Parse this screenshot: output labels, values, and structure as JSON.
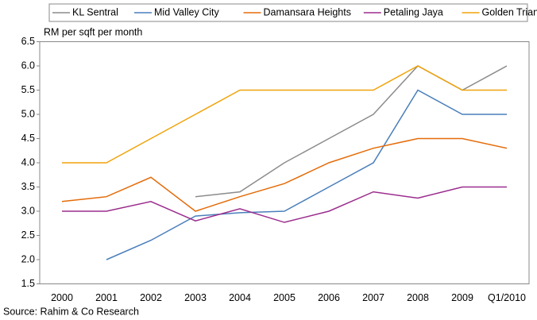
{
  "chart_data": {
    "type": "line",
    "y_axis_label": "RM per sqft per month",
    "source": "Source: Rahim & Co Research",
    "categories": [
      "2000",
      "2001",
      "2002",
      "2003",
      "2004",
      "2005",
      "2006",
      "2007",
      "2008",
      "2009",
      "Q1/2010"
    ],
    "series": [
      {
        "name": "KL Sentral",
        "color": "#8c8c8c",
        "values": [
          null,
          null,
          null,
          3.3,
          3.4,
          4.0,
          4.5,
          5.0,
          6.0,
          5.5,
          6.0
        ]
      },
      {
        "name": "Mid Valley City",
        "color": "#4a7ebb",
        "values": [
          null,
          2.0,
          2.4,
          2.9,
          2.97,
          3.0,
          3.5,
          4.0,
          5.5,
          5.0,
          5.0
        ]
      },
      {
        "name": "Damansara Heights",
        "color": "#e46c0a",
        "values": [
          3.2,
          3.3,
          3.7,
          3.0,
          3.3,
          3.57,
          4.0,
          4.3,
          4.5,
          4.5,
          4.3
        ]
      },
      {
        "name": "Petaling Jaya",
        "color": "#9b2d8e",
        "values": [
          3.0,
          3.0,
          3.2,
          2.8,
          3.05,
          2.77,
          3.0,
          3.4,
          3.27,
          3.5,
          3.5
        ]
      },
      {
        "name": "Golden Triangle",
        "color": "#f0a30a",
        "values": [
          4.0,
          4.0,
          4.5,
          5.0,
          5.5,
          5.5,
          5.5,
          5.5,
          6.0,
          5.5,
          5.5
        ]
      }
    ],
    "ylim": [
      1.5,
      6.5
    ],
    "yticks": [
      1.5,
      {
        "value": 2,
        "label": "2.0"
      },
      2.5,
      {
        "value": 3,
        "label": "3.0"
      },
      3.5,
      {
        "value": 4,
        "label": "4.0"
      },
      4.5,
      {
        "value": 5,
        "label": "5.0"
      },
      5.5,
      {
        "value": 6,
        "label": "6.0"
      },
      6.5
    ],
    "grid": false,
    "legend": "top"
  }
}
